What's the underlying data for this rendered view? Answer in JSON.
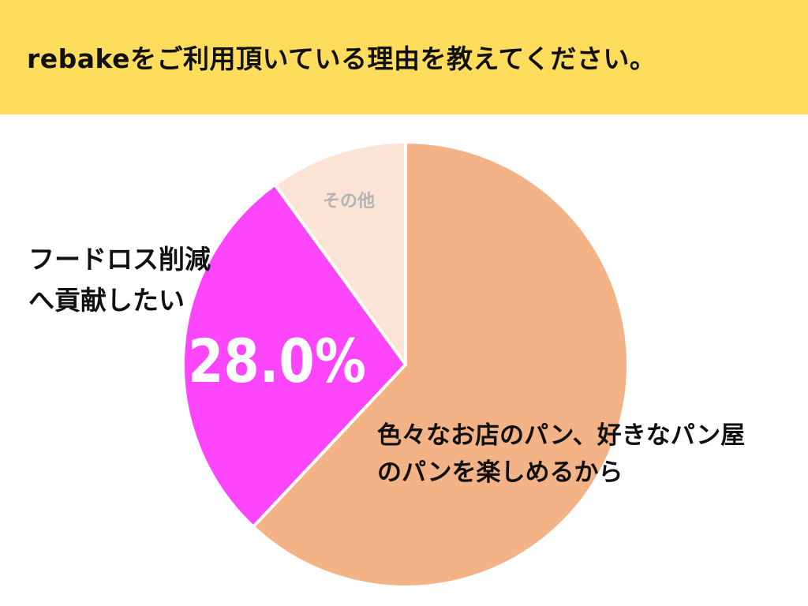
{
  "title": "rebakeをご利用頂いている理由を教えてください。",
  "colors": {
    "header_bg": "#ffdd5c",
    "slice_bread": "#f3b386",
    "slice_foodloss": "#fd46fb",
    "slice_other": "#fbe3d6"
  },
  "chart_data": {
    "type": "pie",
    "start_angle": "12 o'clock",
    "direction": "clockwise",
    "slices": [
      {
        "label_lines": [
          "色々なお店のパン、好きなパン屋",
          "のパンを楽しめるから"
        ],
        "value": 62.0,
        "value_label": "",
        "color": "#f3b386"
      },
      {
        "label_lines": [
          "フードロス削減",
          "へ貢献したい"
        ],
        "value": 28.0,
        "value_label": "28.0%",
        "color": "#fd46fb"
      },
      {
        "label_lines": [
          "その他"
        ],
        "value": 10.0,
        "value_label": "",
        "color": "#fbe3d6"
      }
    ]
  }
}
